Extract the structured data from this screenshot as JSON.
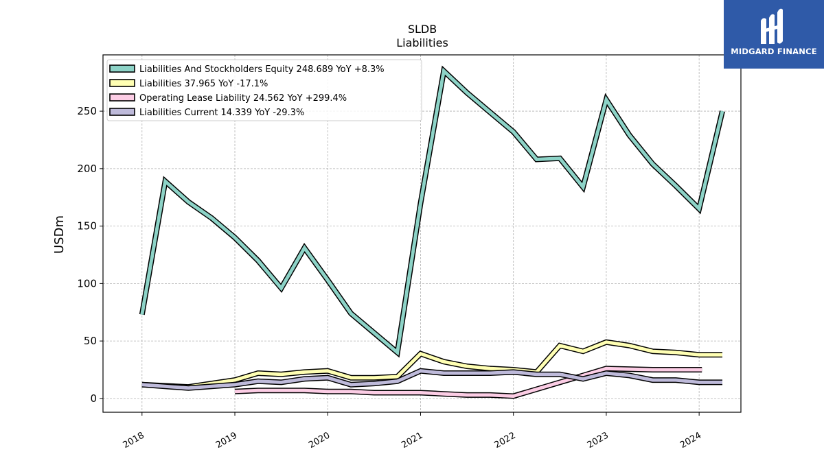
{
  "brand": {
    "name": "MIDGARD FINANCE",
    "bg_color": "#2f5aa8"
  },
  "chart_data": {
    "type": "line",
    "title": "SLDB",
    "subtitle": "Liabilities",
    "ylabel": "USDm",
    "xlabel": "",
    "ylim": [
      -12,
      299
    ],
    "xlim": [
      2017.58,
      2024.45
    ],
    "x_ticks": [
      "2018",
      "2019",
      "2020",
      "2021",
      "2022",
      "2023",
      "2024"
    ],
    "y_ticks": [
      "0",
      "50",
      "100",
      "150",
      "200",
      "250"
    ],
    "grid": true,
    "legend_position": "top-left",
    "series": [
      {
        "name": "Liabilities And Stockholders Equity",
        "legend_label": "Liabilities And Stockholders Equity  248.689 YoY +8.3%",
        "color": "#8dd3c7",
        "points": [
          [
            2018.0,
            73
          ],
          [
            2018.25,
            189
          ],
          [
            2018.5,
            171
          ],
          [
            2018.75,
            157
          ],
          [
            2019.0,
            140
          ],
          [
            2019.25,
            120
          ],
          [
            2019.5,
            96
          ],
          [
            2019.75,
            131
          ],
          [
            2020.0,
            103
          ],
          [
            2020.25,
            74
          ],
          [
            2020.5,
            57
          ],
          [
            2020.75,
            40
          ],
          [
            2021.0,
            170
          ],
          [
            2021.25,
            285
          ],
          [
            2021.5,
            266
          ],
          [
            2021.75,
            249
          ],
          [
            2022.0,
            232
          ],
          [
            2022.25,
            208
          ],
          [
            2022.5,
            209
          ],
          [
            2022.75,
            184
          ],
          [
            2023.0,
            260
          ],
          [
            2023.25,
            229
          ],
          [
            2023.5,
            204
          ],
          [
            2023.75,
            185
          ],
          [
            2024.0,
            165
          ],
          [
            2024.25,
            250
          ]
        ]
      },
      {
        "name": "Liabilities",
        "legend_label": "Liabilities  37.965 YoY -17.1%",
        "color": "#ffffb3",
        "points": [
          [
            2018.0,
            12
          ],
          [
            2018.5,
            10
          ],
          [
            2019.0,
            16
          ],
          [
            2019.25,
            22
          ],
          [
            2019.5,
            21
          ],
          [
            2019.75,
            23
          ],
          [
            2020.0,
            24
          ],
          [
            2020.25,
            18
          ],
          [
            2020.5,
            18
          ],
          [
            2020.75,
            19
          ],
          [
            2021.0,
            39
          ],
          [
            2021.25,
            32
          ],
          [
            2021.5,
            28
          ],
          [
            2021.75,
            26
          ],
          [
            2022.0,
            25
          ],
          [
            2022.25,
            23
          ],
          [
            2022.5,
            46
          ],
          [
            2022.75,
            41
          ],
          [
            2023.0,
            49
          ],
          [
            2023.25,
            46
          ],
          [
            2023.5,
            41
          ],
          [
            2023.75,
            40
          ],
          [
            2024.0,
            38
          ],
          [
            2024.25,
            38
          ]
        ]
      },
      {
        "name": "Operating Lease Liability",
        "legend_label": "Operating Lease Liability  24.562 YoY +299.4%",
        "color": "#fccde5",
        "points": [
          [
            2019.0,
            6
          ],
          [
            2019.25,
            7
          ],
          [
            2019.5,
            7
          ],
          [
            2019.75,
            7
          ],
          [
            2020.0,
            6
          ],
          [
            2020.25,
            6
          ],
          [
            2020.5,
            5
          ],
          [
            2020.75,
            5
          ],
          [
            2021.0,
            5
          ],
          [
            2021.25,
            4
          ],
          [
            2021.5,
            3
          ],
          [
            2021.75,
            3
          ],
          [
            2022.0,
            2
          ],
          [
            2022.5,
            14
          ],
          [
            2022.75,
            20
          ],
          [
            2023.0,
            26
          ],
          [
            2023.5,
            25
          ],
          [
            2024.0,
            25
          ],
          [
            2024.03,
            25
          ]
        ]
      },
      {
        "name": "Liabilities Current",
        "legend_label": "Liabilities Current  14.339 YoY -29.3%",
        "color": "#bebada",
        "points": [
          [
            2018.0,
            12
          ],
          [
            2018.5,
            9
          ],
          [
            2019.0,
            12
          ],
          [
            2019.25,
            15
          ],
          [
            2019.5,
            14
          ],
          [
            2019.75,
            17
          ],
          [
            2020.0,
            18
          ],
          [
            2020.25,
            12
          ],
          [
            2020.5,
            13
          ],
          [
            2020.75,
            15
          ],
          [
            2021.0,
            24
          ],
          [
            2021.25,
            22
          ],
          [
            2021.5,
            22
          ],
          [
            2021.75,
            22
          ],
          [
            2022.0,
            23
          ],
          [
            2022.25,
            21
          ],
          [
            2022.5,
            21
          ],
          [
            2022.75,
            17
          ],
          [
            2023.0,
            22
          ],
          [
            2023.25,
            20
          ],
          [
            2023.5,
            16
          ],
          [
            2023.75,
            16
          ],
          [
            2024.0,
            14
          ],
          [
            2024.25,
            14
          ]
        ]
      }
    ]
  }
}
